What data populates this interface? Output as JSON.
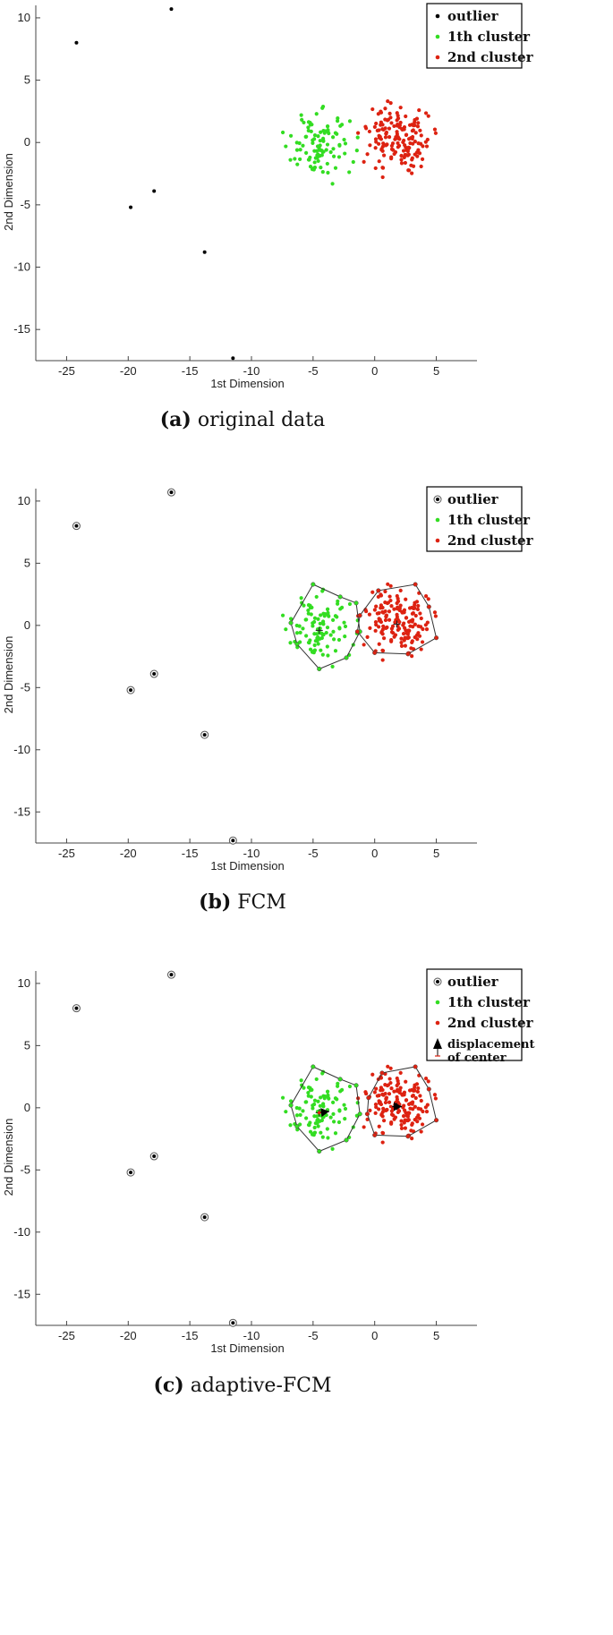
{
  "chart_data": [
    {
      "type": "scatter",
      "panel": "a",
      "xlabel": "1st Dimension",
      "ylabel": "2nd Dimension",
      "xlim": [
        -27.5,
        8.3
      ],
      "ylim": [
        -17.5,
        11
      ],
      "xticks": [
        -25,
        -20,
        -15,
        -10,
        -5,
        0,
        5
      ],
      "yticks": [
        -15,
        -10,
        -5,
        0,
        5,
        10
      ],
      "grid": false,
      "legend_position": "top-right",
      "caption": {
        "label": "(a)",
        "text": "original data"
      },
      "legend": [
        {
          "name": "outlier",
          "marker": "dot",
          "color": "#000000"
        },
        {
          "name": "1th cluster",
          "marker": "dot",
          "color": "#33dd22"
        },
        {
          "name": "2nd cluster",
          "marker": "dot",
          "color": "#dd2211"
        }
      ],
      "outliers": [
        [
          -24.2,
          8.0
        ],
        [
          -16.5,
          10.7
        ],
        [
          -19.8,
          -5.2
        ],
        [
          -17.9,
          -3.9
        ],
        [
          -13.8,
          -8.8
        ],
        [
          -11.5,
          -17.3
        ]
      ],
      "cluster1": {
        "center": [
          -4.5,
          -0.3
        ],
        "spread": 1.3,
        "n": 100
      },
      "cluster2": {
        "center": [
          1.8,
          0.2
        ],
        "spread": 1.25,
        "n": 160
      },
      "hulls": false
    },
    {
      "type": "scatter",
      "panel": "b",
      "xlabel": "1st Dimension",
      "ylabel": "2nd Dimension",
      "xlim": [
        -27.5,
        8.3
      ],
      "ylim": [
        -17.5,
        11
      ],
      "xticks": [
        -25,
        -20,
        -15,
        -10,
        -5,
        0,
        5
      ],
      "yticks": [
        -15,
        -10,
        -5,
        0,
        5,
        10
      ],
      "grid": false,
      "legend_position": "top-right",
      "caption": {
        "label": "(b)",
        "text": "FCM"
      },
      "legend": [
        {
          "name": "outlier",
          "marker": "circled-dot",
          "color": "#000000"
        },
        {
          "name": "1th cluster",
          "marker": "dot",
          "color": "#33dd22"
        },
        {
          "name": "2nd cluster",
          "marker": "dot",
          "color": "#dd2211"
        }
      ],
      "outliers": [
        [
          -24.2,
          8.0
        ],
        [
          -16.5,
          10.7
        ],
        [
          -19.8,
          -5.2
        ],
        [
          -17.9,
          -3.9
        ],
        [
          -13.8,
          -8.8
        ],
        [
          -11.5,
          -17.3
        ]
      ],
      "cluster1": {
        "center": [
          -4.5,
          -0.3
        ],
        "spread": 1.3,
        "n": 100
      },
      "cluster2": {
        "center": [
          1.8,
          0.2
        ],
        "spread": 1.25,
        "n": 160
      },
      "hulls": true,
      "hull1": [
        [
          -5.0,
          3.3
        ],
        [
          -2.8,
          2.3
        ],
        [
          -1.5,
          1.8
        ],
        [
          -1.2,
          -0.5
        ],
        [
          -2.3,
          -2.6
        ],
        [
          -4.5,
          -3.5
        ],
        [
          -6.3,
          -1.5
        ],
        [
          -6.8,
          0.2
        ]
      ],
      "hull2": [
        [
          -1.2,
          0.8
        ],
        [
          0.3,
          2.8
        ],
        [
          3.3,
          3.3
        ],
        [
          4.4,
          1.5
        ],
        [
          5.0,
          -1.0
        ],
        [
          2.7,
          -2.3
        ],
        [
          0.0,
          -2.2
        ],
        [
          -1.4,
          -0.5
        ]
      ],
      "centers": [
        [
          -4.5,
          -0.4
        ],
        [
          1.8,
          0.1
        ]
      ]
    },
    {
      "type": "scatter",
      "panel": "c",
      "xlabel": "1st Dimension",
      "ylabel": "2nd Dimension",
      "xlim": [
        -27.5,
        8.3
      ],
      "ylim": [
        -17.5,
        11
      ],
      "xticks": [
        -25,
        -20,
        -15,
        -10,
        -5,
        0,
        5
      ],
      "yticks": [
        -15,
        -10,
        -5,
        0,
        5,
        10
      ],
      "grid": false,
      "legend_position": "top-right",
      "caption": {
        "label": "(c)",
        "text": "adaptive-FCM"
      },
      "legend": [
        {
          "name": "outlier",
          "marker": "circled-dot",
          "color": "#000000"
        },
        {
          "name": "1th cluster",
          "marker": "dot",
          "color": "#33dd22"
        },
        {
          "name": "2nd cluster",
          "marker": "dot",
          "color": "#dd2211"
        },
        {
          "name": "displacement of center",
          "lines": [
            "displacement",
            "of center"
          ],
          "marker": "arrow",
          "color": "#000000"
        }
      ],
      "outliers": [
        [
          -24.2,
          8.0
        ],
        [
          -16.5,
          10.7
        ],
        [
          -19.8,
          -5.2
        ],
        [
          -17.9,
          -3.9
        ],
        [
          -13.8,
          -8.8
        ],
        [
          -11.5,
          -17.3
        ]
      ],
      "cluster1": {
        "center": [
          -4.5,
          -0.3
        ],
        "spread": 1.3,
        "n": 100
      },
      "cluster2": {
        "center": [
          1.8,
          0.2
        ],
        "spread": 1.25,
        "n": 160
      },
      "hulls": true,
      "hull1": [
        [
          -5.0,
          3.3
        ],
        [
          -2.8,
          2.3
        ],
        [
          -1.5,
          1.8
        ],
        [
          -1.2,
          -0.5
        ],
        [
          -2.3,
          -2.6
        ],
        [
          -4.5,
          -3.5
        ],
        [
          -6.3,
          -1.5
        ],
        [
          -6.8,
          0.2
        ]
      ],
      "hull2": [
        [
          -0.5,
          0.8
        ],
        [
          0.6,
          2.8
        ],
        [
          3.3,
          3.3
        ],
        [
          4.4,
          1.5
        ],
        [
          5.0,
          -1.0
        ],
        [
          2.7,
          -2.3
        ],
        [
          0.0,
          -2.2
        ],
        [
          -0.6,
          -0.5
        ]
      ],
      "centers": [
        [
          -4.5,
          -0.4
        ],
        [
          1.8,
          0.1
        ]
      ],
      "displacements": [
        {
          "from": [
            -4.5,
            -0.4
          ],
          "to": [
            -3.7,
            -0.3
          ]
        },
        {
          "from": [
            1.3,
            0.1
          ],
          "to": [
            2.2,
            0.1
          ]
        }
      ]
    }
  ]
}
